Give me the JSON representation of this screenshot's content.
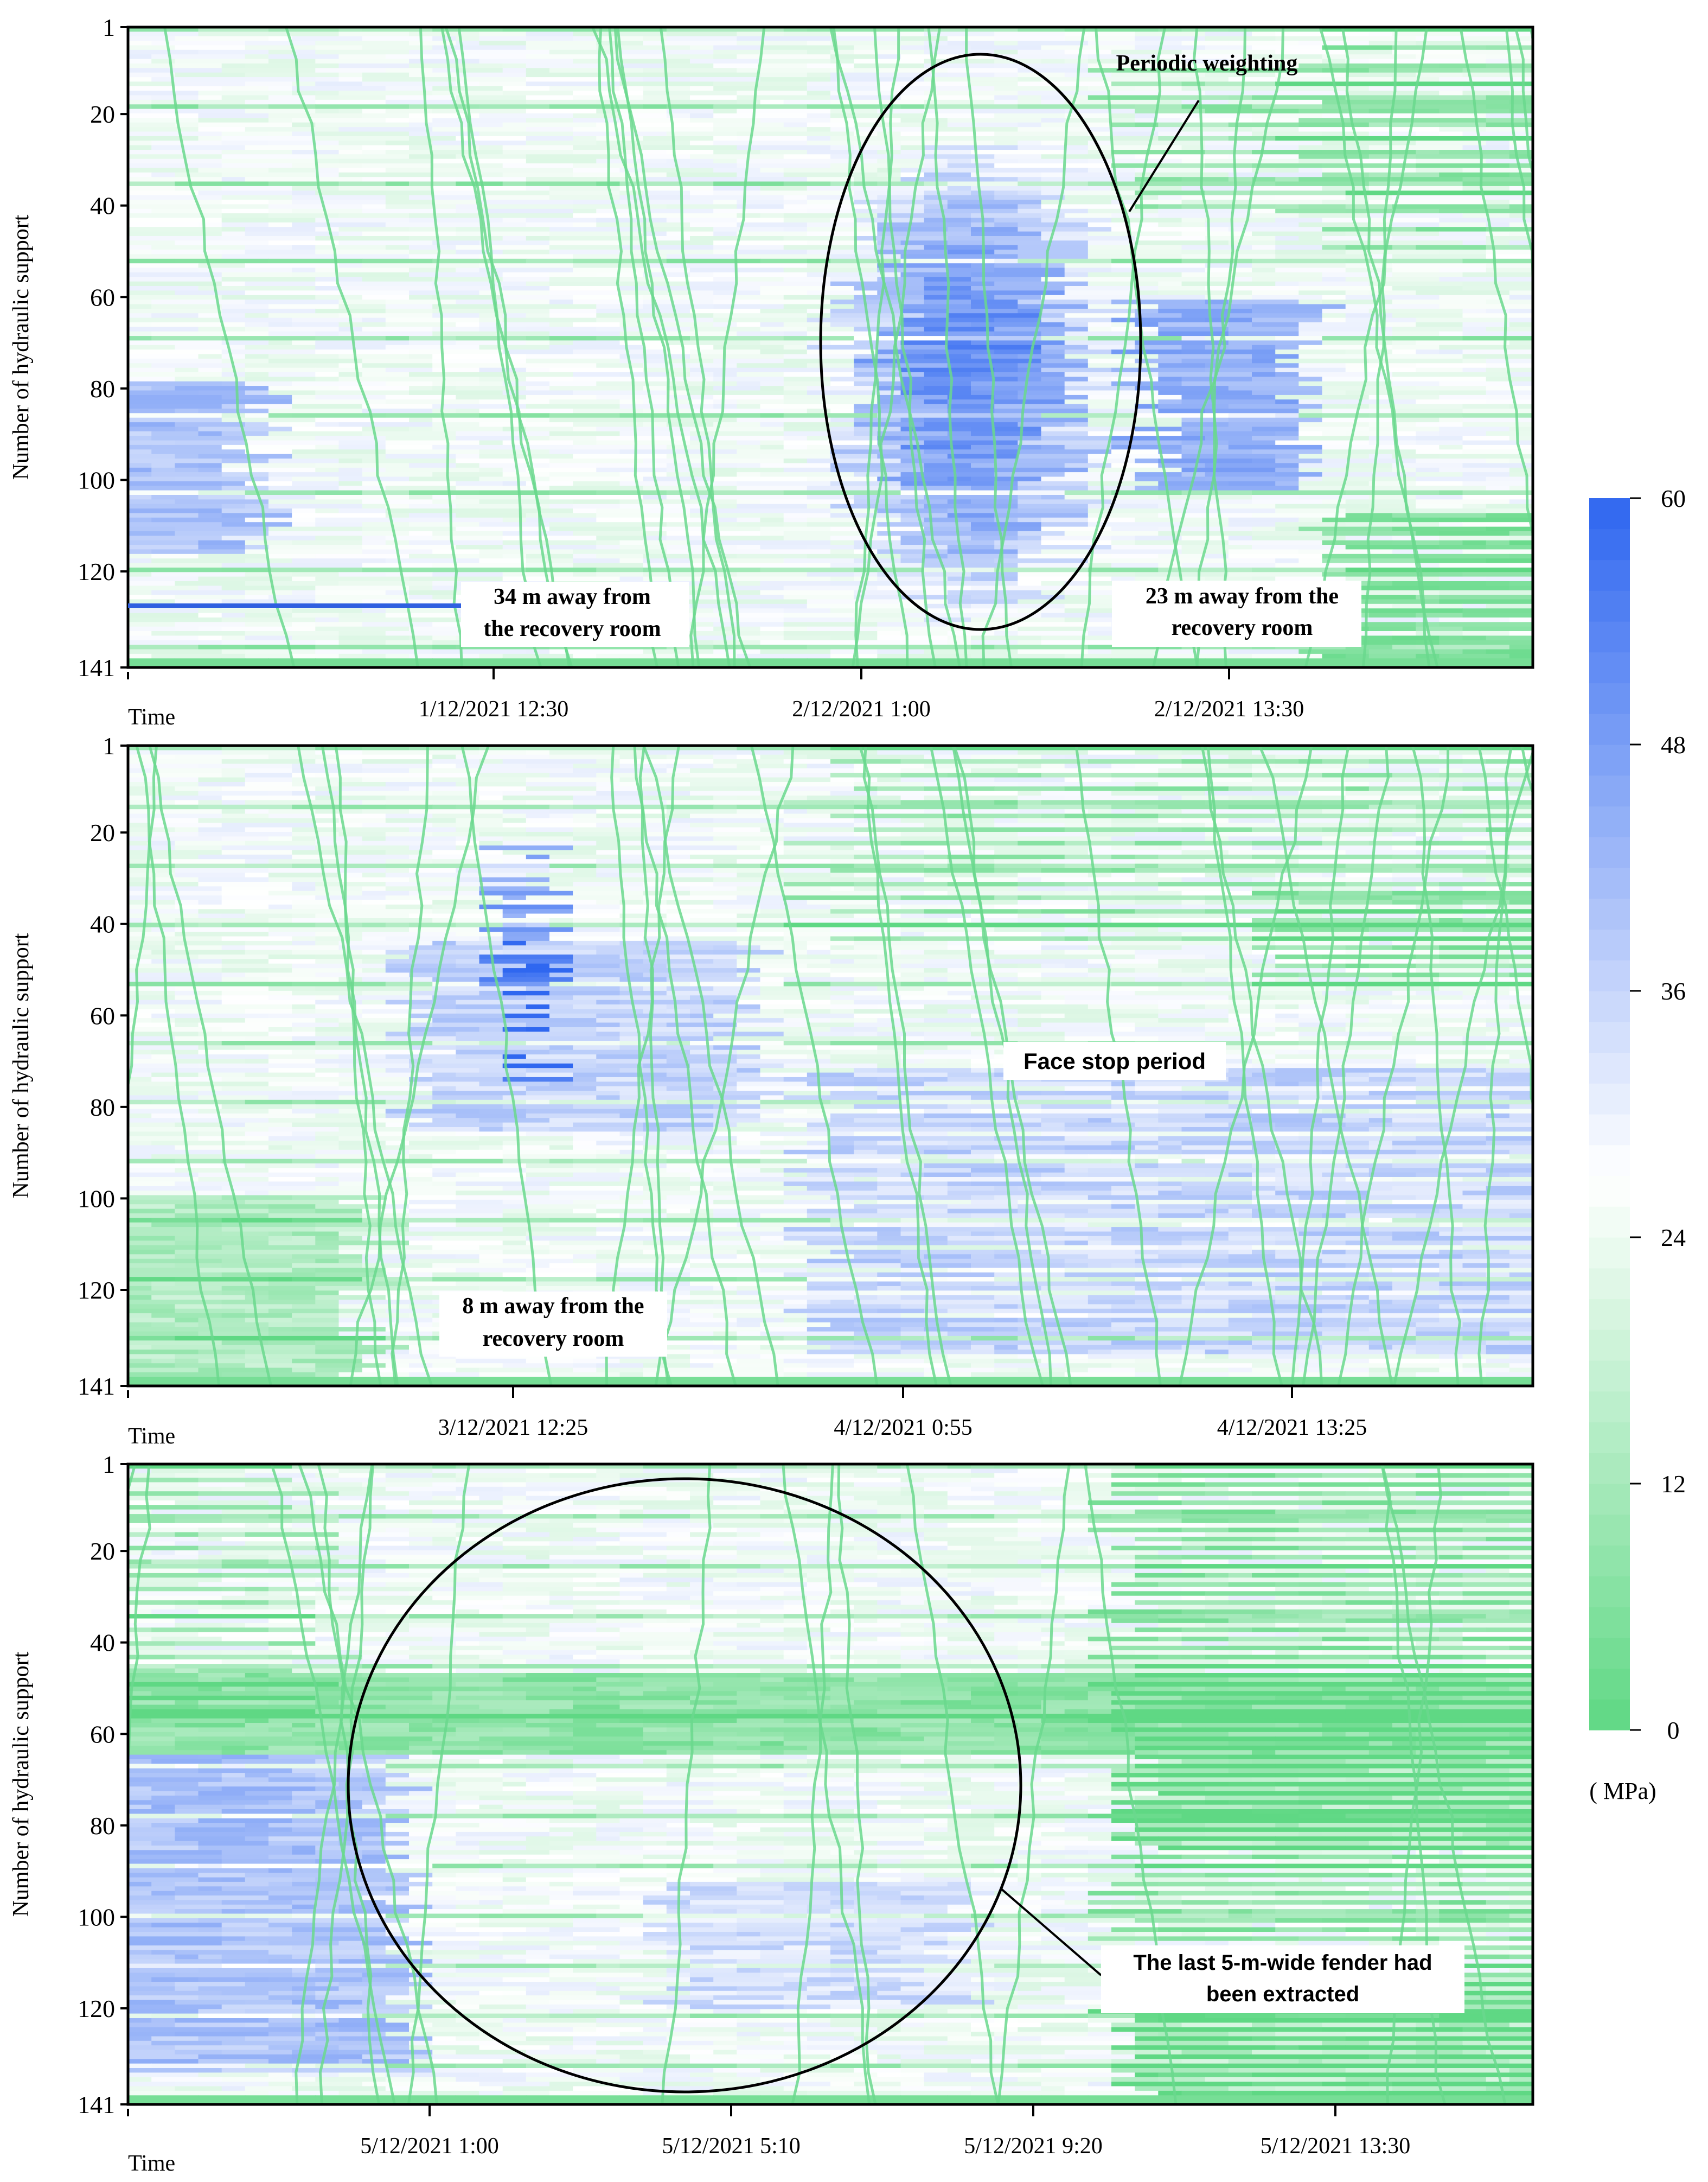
{
  "figure": {
    "ylabel": "Number of hydraulic support",
    "xlabel": "Time",
    "unit_label": "( MPa)"
  },
  "colorbar": {
    "min": 0,
    "max": 60,
    "ticks": [
      "0",
      "12",
      "24",
      "36",
      "48",
      "60"
    ],
    "low_color": "#5fd884",
    "mid_color": "#ffffff",
    "high_color": "#2f67f0"
  },
  "chart_data": [
    {
      "type": "heatmap",
      "panel": "top",
      "ylabel": "Number of hydraulic support",
      "xlabel": "Time",
      "y_range": [
        1,
        141
      ],
      "y_ticks": [
        "1",
        "20",
        "40",
        "60",
        "80",
        "100",
        "120",
        "141"
      ],
      "x_ticks": [
        "1/12/2021 12:30",
        "2/12/2021 1:00",
        "2/12/2021 13:30"
      ],
      "value_range_mpa": [
        0,
        60
      ],
      "annotations": [
        {
          "text": "Periodic weighting",
          "kind": "ellipse-callout"
        },
        {
          "text": "34 m away from the recovery room",
          "line1": "34 m away from",
          "line2": "the recovery room"
        },
        {
          "text": "23 m away from the recovery room",
          "line1": "23 m away from the",
          "line2": "recovery room"
        }
      ]
    },
    {
      "type": "heatmap",
      "panel": "middle",
      "ylabel": "Number of hydraulic support",
      "xlabel": "Time",
      "y_range": [
        1,
        141
      ],
      "y_ticks": [
        "1",
        "20",
        "40",
        "60",
        "80",
        "100",
        "120",
        "141"
      ],
      "x_ticks": [
        "3/12/2021 12:25",
        "4/12/2021 0:55",
        "4/12/2021 13:25"
      ],
      "value_range_mpa": [
        0,
        60
      ],
      "annotations": [
        {
          "text": "Face stop period",
          "line1": "Face  stop period"
        },
        {
          "text": "8 m away from the recovery room",
          "line1": "8 m away from the",
          "line2": "recovery room"
        }
      ]
    },
    {
      "type": "heatmap",
      "panel": "bottom",
      "ylabel": "Number of hydraulic support",
      "xlabel": "Time",
      "y_range": [
        1,
        141
      ],
      "y_ticks": [
        "1",
        "20",
        "40",
        "60",
        "80",
        "100",
        "120",
        "141"
      ],
      "x_ticks": [
        "5/12/2021 1:00",
        "5/12/2021 5:10",
        "5/12/2021 9:20",
        "5/12/2021 13:30"
      ],
      "value_range_mpa": [
        0,
        60
      ],
      "annotations": [
        {
          "text": "The last 5-m-wide fender had been extracted",
          "line1": "The last 5-m-wide fender had",
          "line2": "been extracted",
          "kind": "circle-callout"
        }
      ]
    }
  ]
}
